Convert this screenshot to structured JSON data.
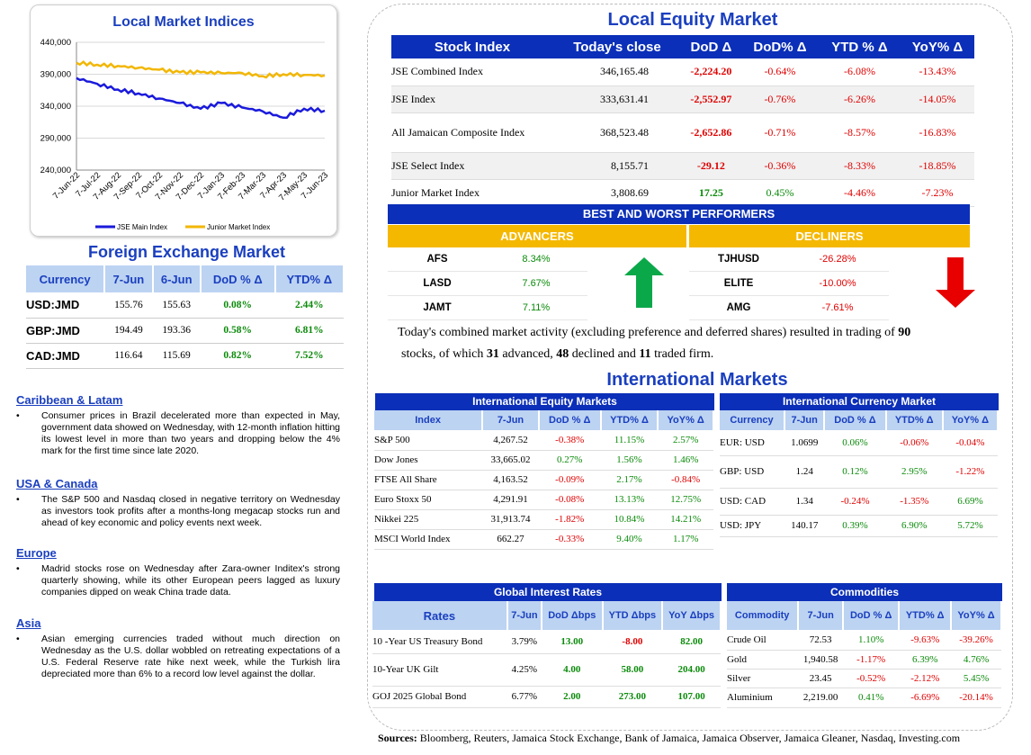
{
  "chart": {
    "title": "Local Market Indices",
    "y_ticks": [
      "440,000",
      "390,000",
      "340,000",
      "290,000",
      "240,000"
    ],
    "x_ticks": [
      "7-Jun-22",
      "7-Jul-22",
      "7-Aug-22",
      "7-Sep-22",
      "7-Oct-22",
      "7-Nov-22",
      "7-Dec-22",
      "7-Jan-23",
      "7-Feb-23",
      "7-Mar-23",
      "7-Apr-23",
      "7-May-23",
      "7-Jun-23"
    ],
    "legend": [
      "JSE Main Index",
      "Junior Market Index"
    ],
    "colors": {
      "main": "#1a1adc",
      "junior": "#f2b705"
    }
  },
  "chart_data": {
    "type": "line",
    "title": "Local Market Indices",
    "categories": [
      "7-Jun-22",
      "7-Jul-22",
      "7-Aug-22",
      "7-Sep-22",
      "7-Oct-22",
      "7-Nov-22",
      "7-Dec-22",
      "7-Jan-23",
      "7-Feb-23",
      "7-Mar-23",
      "7-Apr-23",
      "7-May-23",
      "7-Jun-23"
    ],
    "ylim": [
      240000,
      440000
    ],
    "series": [
      {
        "name": "JSE Main Index",
        "values": [
          384000,
          375000,
          366000,
          360000,
          352000,
          345000,
          336000,
          345000,
          338000,
          332000,
          322000,
          336000,
          333000
        ]
      },
      {
        "name": "Junior Market Index",
        "values": [
          408000,
          405000,
          403000,
          400000,
          397000,
          393000,
          393000,
          392000,
          392000,
          387000,
          390000,
          389000,
          388000
        ]
      }
    ],
    "legend_position": "bottom"
  },
  "fx": {
    "title": "Foreign Exchange Market",
    "headers": [
      "Currency",
      "7-Jun",
      "6-Jun",
      "DoD % Δ",
      "YTD% Δ"
    ],
    "rows": [
      [
        "USD:JMD",
        "155.76",
        "155.63",
        "0.08%",
        "2.44%"
      ],
      [
        "GBP:JMD",
        "194.49",
        "193.36",
        "0.58%",
        "6.81%"
      ],
      [
        "CAD:JMD",
        "116.64",
        "115.69",
        "0.82%",
        "7.52%"
      ]
    ]
  },
  "news": [
    {
      "heading": "Caribbean & Latam",
      "text": "Consumer prices in Brazil decelerated more than expected in May, government data showed on Wednesday, with 12-month inflation hitting its lowest level in more than two years and dropping below the 4% mark for the first time since late 2020."
    },
    {
      "heading": "USA & Canada",
      "text": "The S&P 500 and Nasdaq closed in negative territory on Wednesday as investors took profits after a months-long megacap stocks run and ahead of key economic and policy events next week."
    },
    {
      "heading": "Europe",
      "text": "Madrid stocks rose on Wednesday after Zara-owner Inditex's strong quarterly showing, while its other European peers lagged as luxury companies dipped on weak China trade data."
    },
    {
      "heading": "Asia",
      "text": "Asian emerging currencies traded without much direction on Wednesday as the U.S. dollar wobbled on retreating expectations of a U.S. Federal Reserve rate hike next week, while the Turkish lira depreciated more than 6% to a record low level against the dollar."
    }
  ],
  "local_equity": {
    "title": "Local Equity Market",
    "headers": [
      "Stock Index",
      "Today's close",
      "DoD  Δ",
      "DoD% Δ",
      "YTD % Δ",
      "YoY% Δ"
    ],
    "rows": [
      [
        "JSE Combined Index",
        "346,165.48",
        "-2,224.20",
        "-0.64%",
        "-6.08%",
        "-13.43%"
      ],
      [
        "JSE Index",
        "333,631.41",
        "-2,552.97",
        "-0.76%",
        "-6.26%",
        "-14.05%"
      ],
      [
        "All Jamaican Composite Index",
        "368,523.48",
        "-2,652.86",
        "-0.71%",
        "-8.57%",
        "-16.83%"
      ],
      [
        "JSE Select Index",
        "8,155.71",
        "-29.12",
        "-0.36%",
        "-8.33%",
        "-18.85%"
      ],
      [
        "Junior Market Index",
        "3,808.69",
        "17.25",
        "0.45%",
        "-4.46%",
        "-7.23%"
      ]
    ]
  },
  "performers": {
    "title": "BEST AND WORST PERFORMERS",
    "advancers_label": "ADVANCERS",
    "decliners_label": "DECLINERS",
    "advancers": [
      [
        "AFS",
        "8.34%"
      ],
      [
        "LASD",
        "7.67%"
      ],
      [
        "JAMT",
        "7.11%"
      ]
    ],
    "decliners": [
      [
        "TJHUSD",
        "-26.28%"
      ],
      [
        "ELITE",
        "-10.00%"
      ],
      [
        "AMG",
        "-7.61%"
      ]
    ]
  },
  "summary": {
    "p1": "Today's combined market activity (excluding preference and deferred shares) resulted in trading of ",
    "n_total": "90",
    "p2": "stocks, of which ",
    "n_adv": "31",
    "p3": " advanced, ",
    "n_dec": "48",
    "p4": " declined and ",
    "n_firm": "11",
    "p5": " traded firm."
  },
  "intl": {
    "title": "International Markets",
    "equity": {
      "title": "International Equity Markets",
      "headers": [
        "Index",
        "7-Jun",
        "DoD % Δ",
        "YTD% Δ",
        "YoY% Δ"
      ],
      "rows": [
        [
          "S&P 500",
          "4,267.52",
          "-0.38%",
          "11.15%",
          "2.57%"
        ],
        [
          "Dow Jones",
          "33,665.02",
          "0.27%",
          "1.56%",
          "1.46%"
        ],
        [
          "FTSE All Share",
          "4,163.52",
          "-0.09%",
          "2.17%",
          "-0.84%"
        ],
        [
          "Euro Stoxx 50",
          "4,291.91",
          "-0.08%",
          "13.13%",
          "12.75%"
        ],
        [
          "Nikkei 225",
          "31,913.74",
          "-1.82%",
          "10.84%",
          "14.21%"
        ],
        [
          "MSCI World Index",
          "662.27",
          "-0.33%",
          "9.40%",
          "1.17%"
        ]
      ]
    },
    "currency": {
      "title": "International Currency Market",
      "headers": [
        "Currency",
        "7-Jun",
        "DoD % Δ",
        "YTD% Δ",
        "YoY% Δ"
      ],
      "rows": [
        [
          "EUR: USD",
          "1.0699",
          "0.06%",
          "-0.06%",
          "-0.04%"
        ],
        [
          "GBP: USD",
          "1.24",
          "0.12%",
          "2.95%",
          "-1.22%"
        ],
        [
          "USD: CAD",
          "1.34",
          "-0.24%",
          "-1.35%",
          "6.69%"
        ],
        [
          "USD: JPY",
          "140.17",
          "0.39%",
          "6.90%",
          "5.72%"
        ]
      ]
    },
    "rates": {
      "title": "Global Interest Rates",
      "headers": [
        "Rates",
        "7-Jun",
        "DoD Δbps",
        "YTD Δbps",
        "YoY Δbps"
      ],
      "rows": [
        [
          "10 -Year US Treasury Bond",
          "3.79%",
          "13.00",
          "-8.00",
          "82.00"
        ],
        [
          "10-Year UK Gilt",
          "4.25%",
          "4.00",
          "58.00",
          "204.00"
        ],
        [
          "GOJ 2025 Global Bond",
          "6.77%",
          "2.00",
          "273.00",
          "107.00"
        ]
      ]
    },
    "commodities": {
      "title": "Commodities",
      "headers": [
        "Commodity",
        "7-Jun",
        "DoD % Δ",
        "YTD% Δ",
        "YoY% Δ"
      ],
      "rows": [
        [
          "Crude Oil",
          "72.53",
          "1.10%",
          "-9.63%",
          "-39.26%"
        ],
        [
          "Gold",
          "1,940.58",
          "-1.17%",
          "6.39%",
          "4.76%"
        ],
        [
          "Silver",
          "23.45",
          "-0.52%",
          "-2.12%",
          "5.45%"
        ],
        [
          "Aluminium",
          "2,219.00",
          "0.41%",
          "-6.69%",
          "-20.14%"
        ]
      ]
    }
  },
  "sources": {
    "label": "Sources:",
    "text": " Bloomberg, Reuters, Jamaica Stock Exchange, Bank of Jamaica, Jamaica Observer, Jamaica Gleaner, Nasdaq, Investing.com"
  }
}
